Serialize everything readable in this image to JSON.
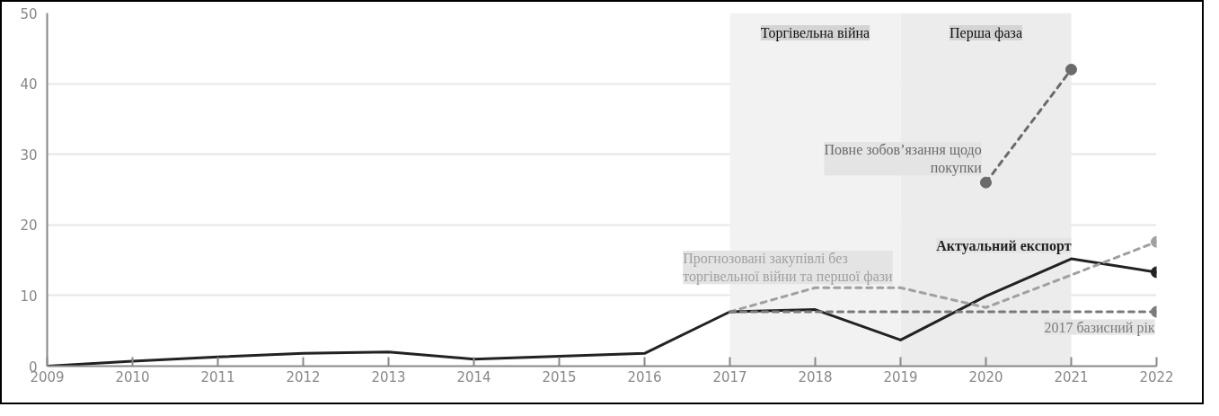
{
  "chart_data": {
    "type": "line",
    "x": [
      2009,
      2010,
      2011,
      2012,
      2013,
      2014,
      2015,
      2016,
      2017,
      2018,
      2019,
      2020,
      2021,
      2022
    ],
    "xlim": [
      2009,
      2022
    ],
    "xticks": [
      2009,
      2010,
      2011,
      2012,
      2013,
      2014,
      2015,
      2016,
      2017,
      2018,
      2019,
      2020,
      2021,
      2022
    ],
    "ylim": [
      0,
      50
    ],
    "yticks": [
      0,
      10,
      20,
      30,
      40,
      50
    ],
    "grid": "y",
    "bands": [
      {
        "axis": "x",
        "from": 2017,
        "to": 2019,
        "label": "Торгівельна війна",
        "color": "#f2f2f2"
      },
      {
        "axis": "x",
        "from": 2019,
        "to": 2021,
        "label": "Перша фаза",
        "color": "#ececec"
      }
    ],
    "series": [
      {
        "name": "Актуальний експорт",
        "color": "#222222",
        "line_style": "solid",
        "values": [
          0,
          0.7,
          1.3,
          1.8,
          2.0,
          1.0,
          1.4,
          1.8,
          7.7,
          8.0,
          3.7,
          9.9,
          15.2,
          13.3
        ]
      },
      {
        "name": "Прогнозовані закупівлі без торгівельної війни та першої фази",
        "color": "#a0a0a0",
        "line_style": "dashed",
        "x": [
          2017,
          2018,
          2019,
          2020,
          2021,
          2022
        ],
        "values": [
          7.7,
          11.1,
          11.1,
          8.3,
          12.9,
          17.6
        ]
      },
      {
        "name": "2017 базисний рік",
        "color": "#7a7a7a",
        "line_style": "dashed",
        "x": [
          2017,
          2018,
          2019,
          2020,
          2021,
          2022
        ],
        "values": [
          7.7,
          7.7,
          7.7,
          7.7,
          7.7,
          7.7
        ]
      },
      {
        "name": "Повне зобов’язання щодо покупки",
        "color": "#6a6a6a",
        "line_style": "dashed",
        "x": [
          2020,
          2021
        ],
        "values": [
          26.0,
          42.0
        ]
      },
      {
        "type": "scatter",
        "marker": "circle",
        "x": [
          2022,
          2022,
          2022,
          2020,
          2021
        ],
        "values": [
          13.3,
          17.6,
          7.7,
          26.0,
          42.0
        ],
        "colors": [
          "#222222",
          "#a0a0a0",
          "#7a7a7a",
          "#6a6a6a",
          "#6a6a6a"
        ]
      }
    ]
  }
}
